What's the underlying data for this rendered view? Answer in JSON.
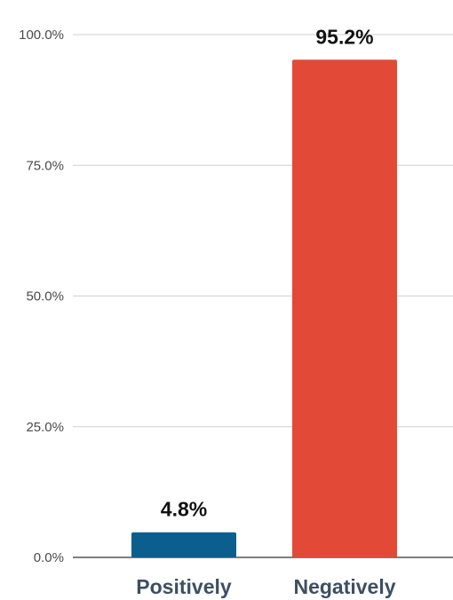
{
  "chart_data": {
    "type": "bar",
    "title": "",
    "xlabel": "",
    "ylabel": "",
    "categories": [
      "Positively",
      "Negatively"
    ],
    "values": [
      4.8,
      95.2
    ],
    "value_labels": [
      "4.8%",
      "95.2%"
    ],
    "bar_colors": [
      "#0b5f8f",
      "#e24a37"
    ],
    "ylim": [
      0,
      100
    ],
    "yticks": [
      0,
      25,
      50,
      75,
      100
    ],
    "ytick_labels": [
      "0.0%",
      "25.0%",
      "50.0%",
      "75.0%",
      "100.0%"
    ],
    "grid": true,
    "legend": "none"
  }
}
